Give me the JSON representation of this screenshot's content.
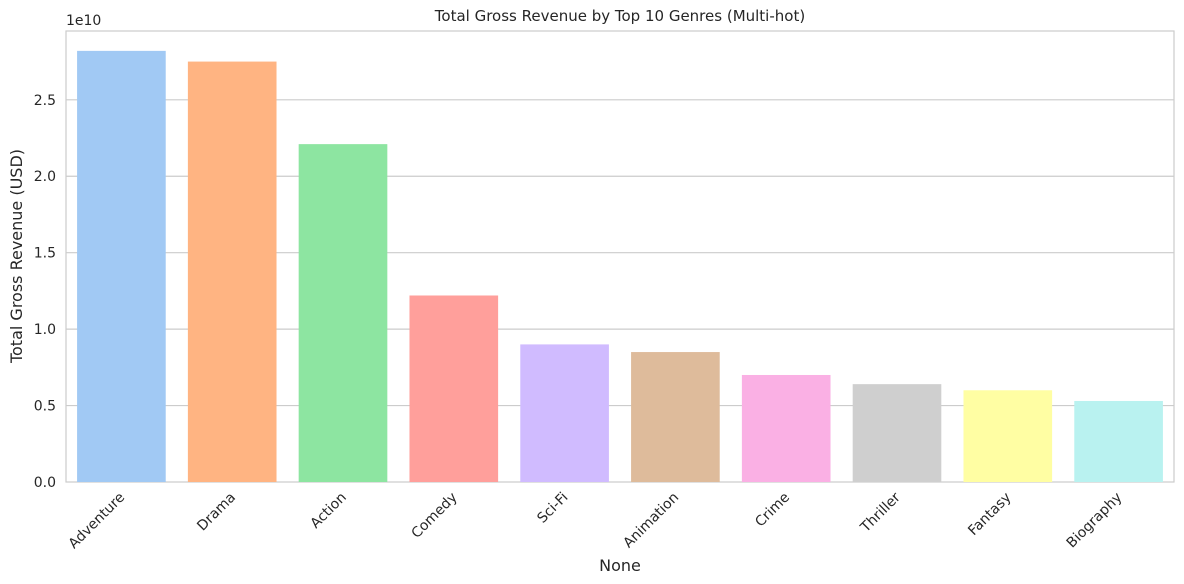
{
  "chart_data": {
    "type": "bar",
    "title": "Total Gross Revenue by Top 10 Genres (Multi-hot)",
    "xlabel": "None",
    "ylabel": "Total Gross Revenue (USD)",
    "offset_label": "1e10",
    "categories": [
      "Adventure",
      "Drama",
      "Action",
      "Comedy",
      "Sci-Fi",
      "Animation",
      "Crime",
      "Thriller",
      "Fantasy",
      "Biography"
    ],
    "values": [
      28200000000,
      27500000000,
      22100000000,
      12200000000,
      9000000000,
      8500000000,
      7000000000,
      6400000000,
      6000000000,
      5300000000
    ],
    "colors": [
      "#a1c9f4",
      "#ffb482",
      "#8de5a1",
      "#ff9f9b",
      "#d0bbff",
      "#debb9b",
      "#fab0e4",
      "#cfcfcf",
      "#fffea3",
      "#b9f2f0"
    ],
    "ylim": [
      0,
      29500000000
    ],
    "yticks": [
      0,
      5000000000,
      10000000000,
      15000000000,
      20000000000,
      25000000000
    ],
    "ytick_labels": [
      "0.0",
      "0.5",
      "1.0",
      "1.5",
      "2.0",
      "2.5"
    ],
    "grid": "horizontal"
  }
}
